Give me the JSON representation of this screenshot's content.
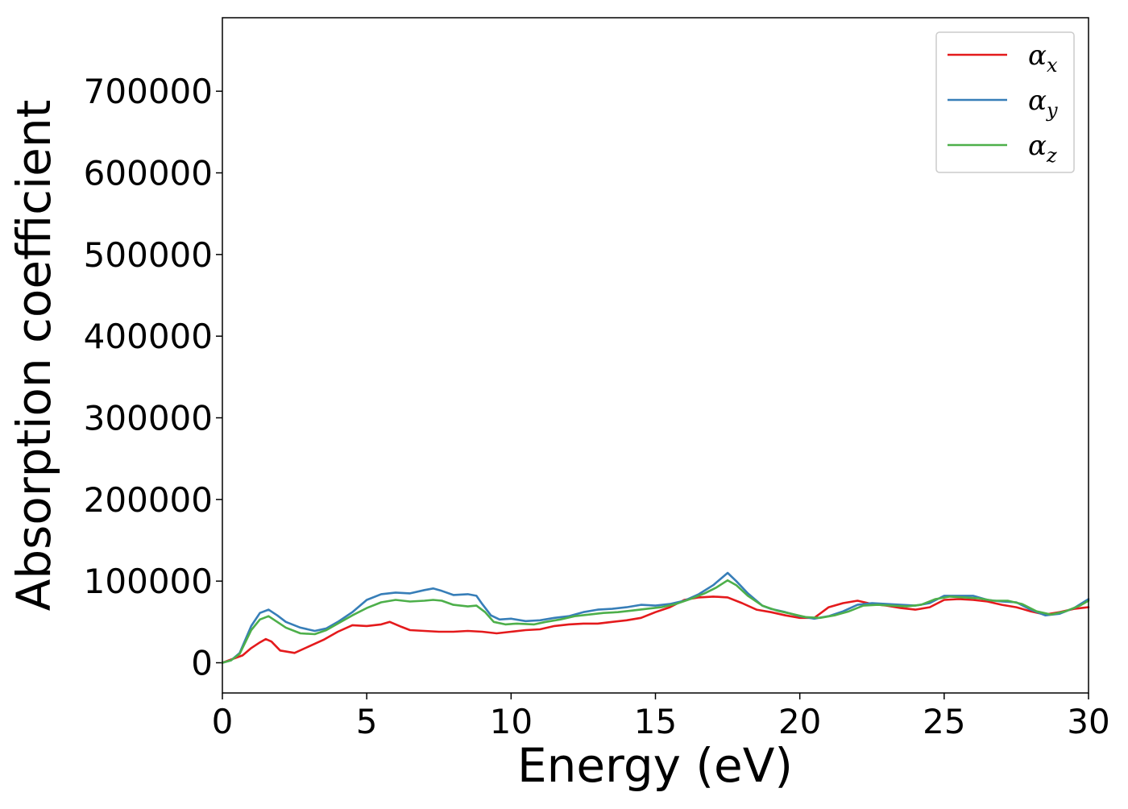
{
  "chart_data": {
    "type": "line",
    "xlabel": "Energy (eV)",
    "ylabel": "Absorption coefficient",
    "xlim": [
      0,
      30
    ],
    "ylim": [
      -37000,
      790000
    ],
    "x_ticks": [
      0,
      5,
      10,
      15,
      20,
      25,
      30
    ],
    "x_tick_labels": [
      "0",
      "5",
      "10",
      "15",
      "20",
      "25",
      "30"
    ],
    "y_ticks": [
      0,
      100000,
      200000,
      300000,
      400000,
      500000,
      600000,
      700000
    ],
    "y_tick_labels": [
      "0",
      "100000",
      "200000",
      "300000",
      "400000",
      "500000",
      "600000",
      "700000"
    ],
    "grid": false,
    "legend_position": "top-right",
    "series": [
      {
        "name": "αx",
        "legend_symbol": "α",
        "legend_subscript": "x",
        "color": "#e41a1c",
        "points": [
          [
            0,
            0
          ],
          [
            0.3,
            4000
          ],
          [
            0.7,
            9000
          ],
          [
            1.0,
            18000
          ],
          [
            1.3,
            25000
          ],
          [
            1.5,
            29000
          ],
          [
            1.7,
            26000
          ],
          [
            2.0,
            15000
          ],
          [
            2.5,
            12000
          ],
          [
            3.0,
            20000
          ],
          [
            3.5,
            28000
          ],
          [
            4.0,
            38000
          ],
          [
            4.5,
            46000
          ],
          [
            5.0,
            45000
          ],
          [
            5.5,
            47000
          ],
          [
            5.8,
            50000
          ],
          [
            6.2,
            44000
          ],
          [
            6.5,
            40000
          ],
          [
            7.0,
            39000
          ],
          [
            7.5,
            38000
          ],
          [
            8.0,
            38000
          ],
          [
            8.5,
            39000
          ],
          [
            9.0,
            38000
          ],
          [
            9.5,
            36000
          ],
          [
            10.0,
            38000
          ],
          [
            10.5,
            40000
          ],
          [
            11.0,
            41000
          ],
          [
            11.5,
            45000
          ],
          [
            12.0,
            47000
          ],
          [
            12.5,
            48000
          ],
          [
            13.0,
            48000
          ],
          [
            13.5,
            50000
          ],
          [
            14.0,
            52000
          ],
          [
            14.5,
            55000
          ],
          [
            15.0,
            62000
          ],
          [
            15.5,
            68000
          ],
          [
            16.0,
            77000
          ],
          [
            16.5,
            80000
          ],
          [
            17.0,
            81000
          ],
          [
            17.5,
            80000
          ],
          [
            18.0,
            73000
          ],
          [
            18.5,
            65000
          ],
          [
            19.0,
            62000
          ],
          [
            19.5,
            58000
          ],
          [
            20.0,
            55000
          ],
          [
            20.5,
            55000
          ],
          [
            21.0,
            68000
          ],
          [
            21.5,
            73000
          ],
          [
            22.0,
            76000
          ],
          [
            22.5,
            72000
          ],
          [
            23.0,
            70000
          ],
          [
            23.5,
            67000
          ],
          [
            24.0,
            65000
          ],
          [
            24.5,
            68000
          ],
          [
            25.0,
            77000
          ],
          [
            25.5,
            78000
          ],
          [
            26.0,
            77000
          ],
          [
            26.5,
            75000
          ],
          [
            27.0,
            71000
          ],
          [
            27.5,
            68000
          ],
          [
            28.0,
            63000
          ],
          [
            28.5,
            59000
          ],
          [
            29.0,
            62000
          ],
          [
            29.5,
            66000
          ],
          [
            30.0,
            68000
          ]
        ]
      },
      {
        "name": "αy",
        "legend_symbol": "α",
        "legend_subscript": "y",
        "color": "#377eb8",
        "points": [
          [
            0,
            0
          ],
          [
            0.3,
            3000
          ],
          [
            0.6,
            12000
          ],
          [
            1.0,
            45000
          ],
          [
            1.3,
            61000
          ],
          [
            1.6,
            65000
          ],
          [
            1.9,
            58000
          ],
          [
            2.2,
            50000
          ],
          [
            2.7,
            43000
          ],
          [
            3.2,
            39000
          ],
          [
            3.6,
            42000
          ],
          [
            4.0,
            50000
          ],
          [
            4.5,
            62000
          ],
          [
            5.0,
            77000
          ],
          [
            5.5,
            84000
          ],
          [
            6.0,
            86000
          ],
          [
            6.5,
            85000
          ],
          [
            7.0,
            89000
          ],
          [
            7.3,
            91000
          ],
          [
            7.6,
            88000
          ],
          [
            8.0,
            83000
          ],
          [
            8.5,
            84000
          ],
          [
            8.8,
            82000
          ],
          [
            9.0,
            72000
          ],
          [
            9.3,
            58000
          ],
          [
            9.6,
            53000
          ],
          [
            10.0,
            54000
          ],
          [
            10.5,
            51000
          ],
          [
            11.0,
            52000
          ],
          [
            11.5,
            55000
          ],
          [
            12.0,
            57000
          ],
          [
            12.5,
            62000
          ],
          [
            13.0,
            65000
          ],
          [
            13.5,
            66000
          ],
          [
            14.0,
            68000
          ],
          [
            14.5,
            71000
          ],
          [
            15.0,
            70000
          ],
          [
            15.5,
            72000
          ],
          [
            16.0,
            76000
          ],
          [
            16.5,
            84000
          ],
          [
            17.0,
            95000
          ],
          [
            17.3,
            104000
          ],
          [
            17.5,
            110000
          ],
          [
            17.8,
            100000
          ],
          [
            18.2,
            85000
          ],
          [
            18.7,
            70000
          ],
          [
            19.0,
            66000
          ],
          [
            19.5,
            62000
          ],
          [
            20.0,
            57000
          ],
          [
            20.5,
            54000
          ],
          [
            21.0,
            57000
          ],
          [
            21.5,
            63000
          ],
          [
            22.0,
            71000
          ],
          [
            22.5,
            73000
          ],
          [
            23.0,
            72000
          ],
          [
            23.5,
            71000
          ],
          [
            24.0,
            70000
          ],
          [
            24.5,
            73000
          ],
          [
            25.0,
            82000
          ],
          [
            25.5,
            82000
          ],
          [
            26.0,
            82000
          ],
          [
            26.5,
            77000
          ],
          [
            27.0,
            75000
          ],
          [
            27.5,
            74000
          ],
          [
            28.0,
            65000
          ],
          [
            28.5,
            58000
          ],
          [
            29.0,
            60000
          ],
          [
            29.5,
            67000
          ],
          [
            30.0,
            78000
          ]
        ]
      },
      {
        "name": "αz",
        "legend_symbol": "α",
        "legend_subscript": "z",
        "color": "#4daf4a",
        "points": [
          [
            0,
            0
          ],
          [
            0.3,
            3000
          ],
          [
            0.6,
            11000
          ],
          [
            1.0,
            40000
          ],
          [
            1.3,
            53000
          ],
          [
            1.6,
            57000
          ],
          [
            1.9,
            50000
          ],
          [
            2.2,
            43000
          ],
          [
            2.7,
            36000
          ],
          [
            3.2,
            35000
          ],
          [
            3.6,
            40000
          ],
          [
            4.0,
            48000
          ],
          [
            4.5,
            58000
          ],
          [
            5.0,
            67000
          ],
          [
            5.5,
            74000
          ],
          [
            6.0,
            77000
          ],
          [
            6.5,
            75000
          ],
          [
            7.0,
            76000
          ],
          [
            7.3,
            77000
          ],
          [
            7.6,
            76000
          ],
          [
            8.0,
            71000
          ],
          [
            8.5,
            69000
          ],
          [
            8.8,
            70000
          ],
          [
            9.1,
            62000
          ],
          [
            9.4,
            50000
          ],
          [
            9.8,
            47000
          ],
          [
            10.2,
            48000
          ],
          [
            10.8,
            47000
          ],
          [
            11.2,
            50000
          ],
          [
            11.7,
            53000
          ],
          [
            12.2,
            57000
          ],
          [
            12.7,
            59000
          ],
          [
            13.2,
            61000
          ],
          [
            13.7,
            62000
          ],
          [
            14.2,
            64000
          ],
          [
            14.7,
            66000
          ],
          [
            15.2,
            68000
          ],
          [
            15.7,
            72000
          ],
          [
            16.2,
            78000
          ],
          [
            16.7,
            85000
          ],
          [
            17.1,
            92000
          ],
          [
            17.5,
            101000
          ],
          [
            17.8,
            95000
          ],
          [
            18.2,
            82000
          ],
          [
            18.7,
            70000
          ],
          [
            19.2,
            64000
          ],
          [
            19.7,
            60000
          ],
          [
            20.2,
            56000
          ],
          [
            20.7,
            55000
          ],
          [
            21.2,
            58000
          ],
          [
            21.7,
            63000
          ],
          [
            22.2,
            70000
          ],
          [
            22.7,
            71000
          ],
          [
            23.2,
            70000
          ],
          [
            23.7,
            69000
          ],
          [
            24.2,
            71000
          ],
          [
            24.7,
            78000
          ],
          [
            25.2,
            81000
          ],
          [
            25.7,
            80000
          ],
          [
            26.2,
            79000
          ],
          [
            26.7,
            76000
          ],
          [
            27.2,
            76000
          ],
          [
            27.7,
            72000
          ],
          [
            28.2,
            63000
          ],
          [
            28.7,
            59000
          ],
          [
            29.2,
            63000
          ],
          [
            29.7,
            70000
          ],
          [
            30.0,
            76000
          ]
        ]
      }
    ]
  }
}
